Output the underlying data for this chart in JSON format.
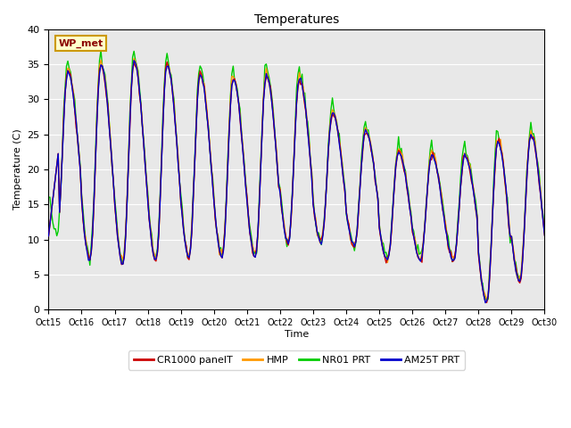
{
  "title": "Temperatures",
  "xlabel": "Time",
  "ylabel": "Temperature (C)",
  "ylim": [
    0,
    40
  ],
  "xlim": [
    0,
    360
  ],
  "annotation": "WP_met",
  "background_color": "#e8e8e8",
  "grid_color": "white",
  "lines": {
    "CR1000_panelT": {
      "color": "#cc0000",
      "label": "CR1000 panelT"
    },
    "HMP": {
      "color": "#ff9900",
      "label": "HMP"
    },
    "NR01_PRT": {
      "color": "#00cc00",
      "label": "NR01 PRT"
    },
    "AM25T_PRT": {
      "color": "#0000cc",
      "label": "AM25T PRT"
    }
  },
  "xtick_labels": [
    "Oct 15",
    "Oct 16",
    "Oct 17",
    "Oct 18",
    "Oct 19",
    "Oct 20",
    "Oct 21",
    "Oct 22",
    "Oct 23",
    "Oct 24",
    "Oct 25",
    "Oct 26",
    "Oct 27",
    "Oct 28",
    "Oct 29",
    "Oct 30"
  ],
  "xtick_positions": [
    0,
    24,
    48,
    72,
    96,
    120,
    144,
    168,
    192,
    216,
    240,
    264,
    288,
    312,
    336,
    360
  ],
  "ytick_positions": [
    0,
    5,
    10,
    15,
    20,
    25,
    30,
    35,
    40
  ]
}
